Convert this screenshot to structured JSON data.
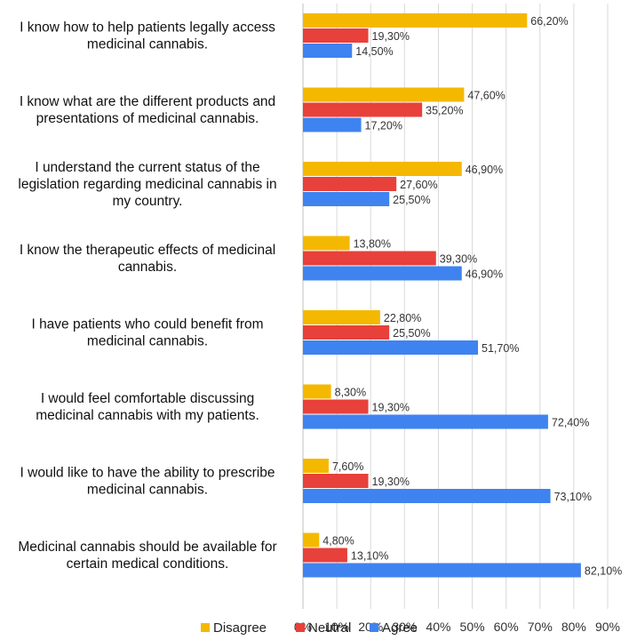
{
  "chart_data": {
    "type": "bar",
    "orientation": "horizontal",
    "title": "",
    "xlabel": "",
    "ylabel": "",
    "xlim": [
      0,
      90
    ],
    "x_ticks": [
      "0%",
      "10%",
      "20%",
      "30%",
      "40%",
      "50%",
      "60%",
      "70%",
      "80%",
      "90%"
    ],
    "grid": true,
    "legend_position": "bottom",
    "categories": [
      [
        "I know how to help patients legally access",
        "medicinal cannabis."
      ],
      [
        "I know what are the different products and",
        "presentations of medicinal cannabis."
      ],
      [
        "I understand the current status of the",
        "legislation regarding medicinal cannabis in",
        "my country."
      ],
      [
        "I know the therapeutic effects of medicinal",
        "cannabis."
      ],
      [
        "I have patients who could benefit from",
        "medicinal cannabis."
      ],
      [
        "I would feel comfortable discussing",
        "medicinal cannabis with my patients."
      ],
      [
        "I would like to have the ability to prescribe",
        "medicinal cannabis."
      ],
      [
        "Medicinal cannabis should be available for",
        "certain medical conditions."
      ]
    ],
    "series": [
      {
        "name": "Disagree",
        "color": "#f5b800",
        "values": [
          66.2,
          47.6,
          46.9,
          13.8,
          22.8,
          8.3,
          7.6,
          4.8
        ],
        "labels": [
          "66,20%",
          "47,60%",
          "46,90%",
          "13,80%",
          "22,80%",
          "8,30%",
          "7,60%",
          "4,80%"
        ]
      },
      {
        "name": "Neutral",
        "color": "#e8403a",
        "values": [
          19.3,
          35.2,
          27.6,
          39.3,
          25.5,
          19.3,
          19.3,
          13.1
        ],
        "labels": [
          "19,30%",
          "35,20%",
          "27,60%",
          "39,30%",
          "25,50%",
          "19,30%",
          "19,30%",
          "13,10%"
        ]
      },
      {
        "name": "Agree",
        "color": "#3f83f0",
        "values": [
          14.5,
          17.2,
          25.5,
          46.9,
          51.7,
          72.4,
          73.1,
          82.1
        ],
        "labels": [
          "14,50%",
          "17,20%",
          "25,50%",
          "46,90%",
          "51,70%",
          "72,40%",
          "73,10%",
          "82,10%"
        ]
      }
    ]
  }
}
